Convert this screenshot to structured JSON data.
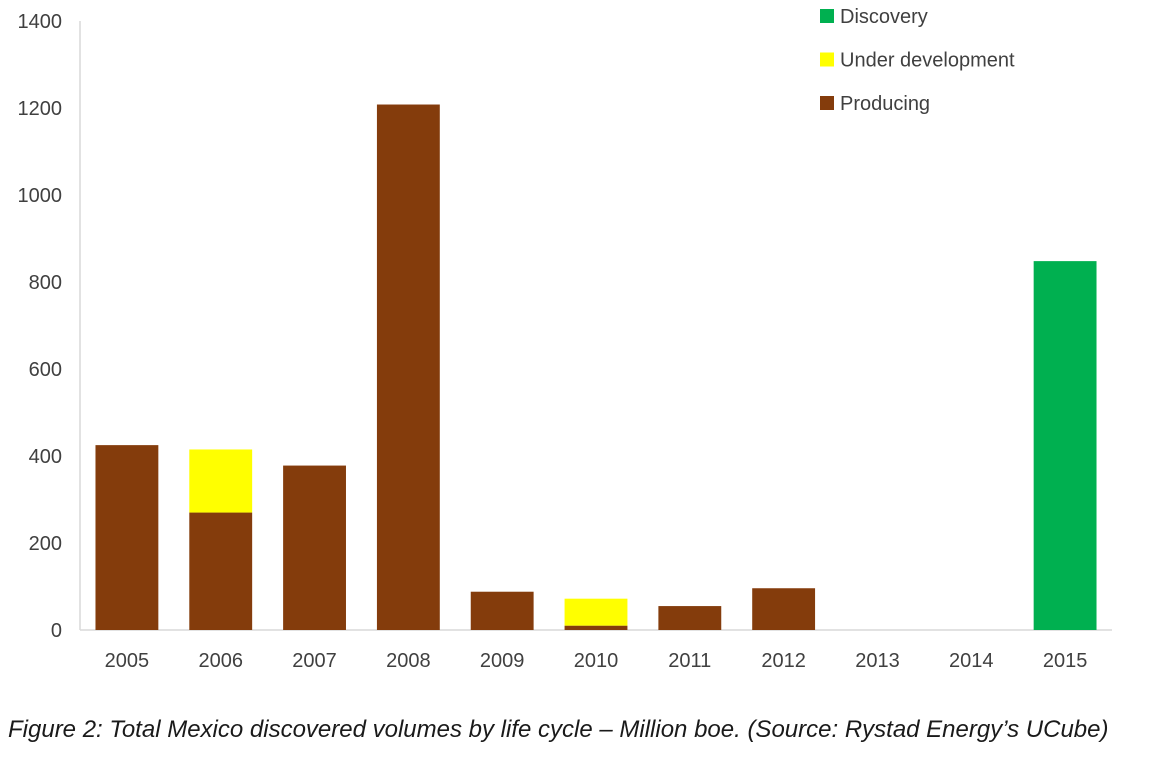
{
  "chart_data": {
    "type": "bar",
    "stacked": true,
    "categories": [
      "2005",
      "2006",
      "2007",
      "2008",
      "2009",
      "2010",
      "2011",
      "2012",
      "2013",
      "2014",
      "2015"
    ],
    "series": [
      {
        "name": "Producing",
        "color": "#843C0C",
        "values": [
          425,
          270,
          378,
          1208,
          88,
          10,
          55,
          96,
          0,
          0,
          0
        ]
      },
      {
        "name": "Under development",
        "color": "#FFFF00",
        "values": [
          0,
          145,
          0,
          0,
          0,
          62,
          0,
          0,
          0,
          0,
          0
        ]
      },
      {
        "name": "Discovery",
        "color": "#00B050",
        "values": [
          0,
          0,
          0,
          0,
          0,
          0,
          0,
          0,
          0,
          0,
          848
        ]
      }
    ],
    "legend_order": [
      "Discovery",
      "Under development",
      "Producing"
    ],
    "legend_position": "top-right",
    "ylim": [
      0,
      1400
    ],
    "yticks": [
      0,
      200,
      400,
      600,
      800,
      1000,
      1200,
      1400
    ],
    "grid": false,
    "title": "",
    "xlabel": "",
    "ylabel": ""
  },
  "caption": "Figure 2: Total Mexico discovered volumes by life cycle – Million boe. (Source: Rystad Energy’s UCube)"
}
